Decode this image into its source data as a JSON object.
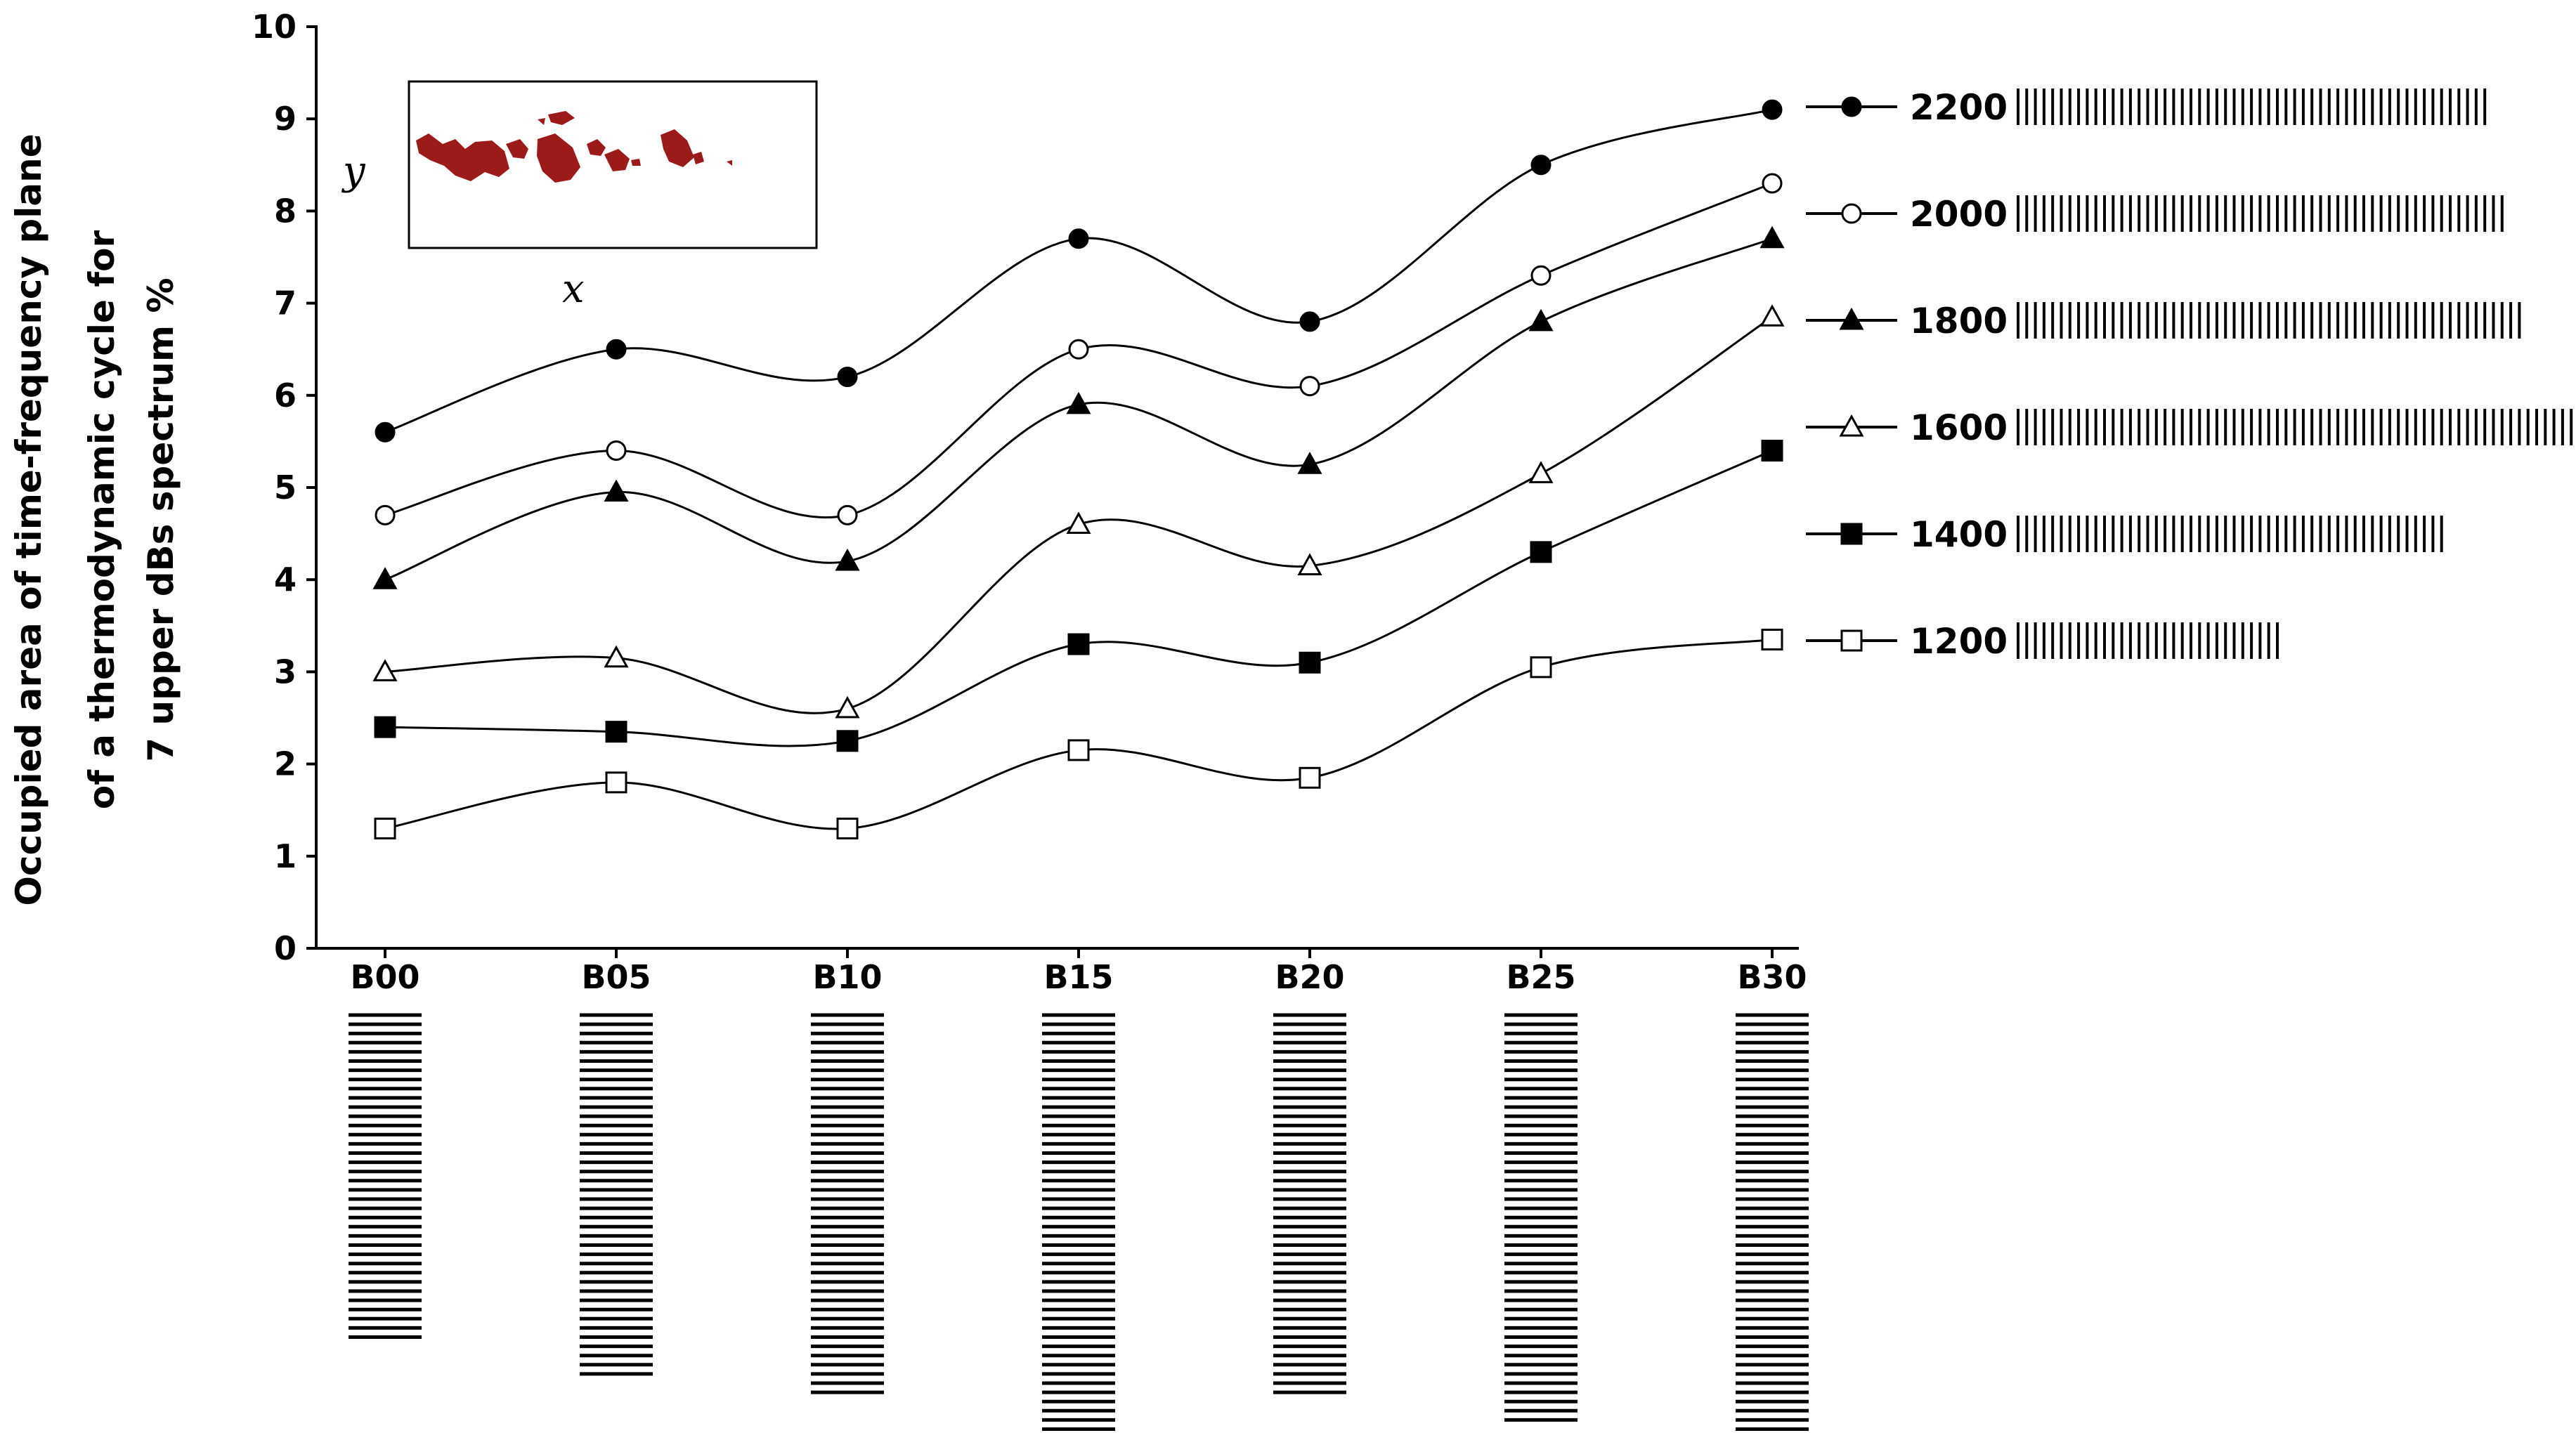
{
  "chart_data": {
    "type": "line",
    "title": "",
    "xlabel": "",
    "ylabel_lines": [
      "Occupied area of time-frequency plane",
      "of a thermodynamic cycle for",
      "7 upper dBs spectrum %"
    ],
    "categories": [
      "B00",
      "B05",
      "B10",
      "B15",
      "B20",
      "B25",
      "B30"
    ],
    "ylim": [
      0,
      10
    ],
    "yticks": [
      "0",
      "1",
      "2",
      "3",
      "4",
      "5",
      "6",
      "7",
      "8",
      "9",
      "10"
    ],
    "grid": false,
    "smooth": true,
    "legend_position": "right",
    "series": [
      {
        "name": "2200",
        "marker": "filled-circle",
        "values": [
          5.6,
          6.5,
          6.2,
          7.7,
          6.8,
          8.5,
          9.1
        ]
      },
      {
        "name": "2000",
        "marker": "open-circle",
        "values": [
          4.7,
          5.4,
          4.7,
          6.5,
          6.1,
          7.3,
          8.3
        ]
      },
      {
        "name": "1800",
        "marker": "filled-triangle",
        "values": [
          4.0,
          4.95,
          4.2,
          5.9,
          5.25,
          6.8,
          7.7
        ]
      },
      {
        "name": "1600",
        "marker": "open-triangle",
        "values": [
          3.0,
          3.15,
          2.6,
          4.6,
          4.15,
          5.15,
          6.85
        ]
      },
      {
        "name": "1400",
        "marker": "filled-square",
        "values": [
          2.4,
          2.35,
          2.25,
          3.3,
          3.1,
          4.3,
          5.4
        ]
      },
      {
        "name": "1200",
        "marker": "open-square",
        "values": [
          1.3,
          1.8,
          1.3,
          2.15,
          1.85,
          3.05,
          3.35
        ]
      }
    ],
    "legend_bar_counts": [
      55,
      57,
      59,
      67,
      50,
      31
    ],
    "category_bar_counts": [
      36,
      40,
      42,
      48,
      42,
      45,
      47
    ],
    "inset": {
      "x_axis_label": "x",
      "y_axis_label": "y",
      "blob_color": "#9b1b1b"
    },
    "colors": {
      "line": "#000000",
      "background": "#ffffff"
    }
  }
}
